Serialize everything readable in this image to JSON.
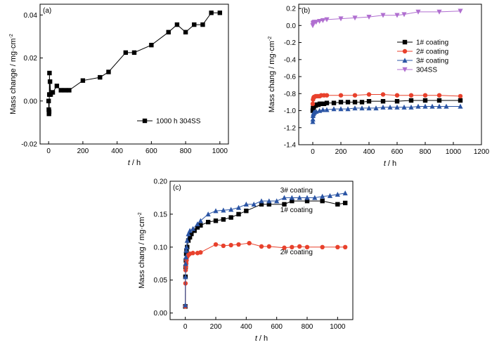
{
  "chart_data": [
    {
      "panel": "(a)",
      "type": "line",
      "xlabel_italic": "t",
      "xlabel_unit": " / h",
      "ylabel": "Mass change / mg·cm",
      "ylabel_sup": "-2",
      "xlim": [
        -50,
        1050
      ],
      "ylim": [
        -0.02,
        0.045
      ],
      "xticks": [
        0,
        200,
        400,
        600,
        800,
        1000
      ],
      "yticks": [
        -0.02,
        0.0,
        0.02,
        0.04
      ],
      "ytick_labels": [
        "-0.02",
        "0.00",
        "0.02",
        "0.04"
      ],
      "legend_position": "lower-right",
      "series": [
        {
          "name": "1000 h 304SS",
          "color": "#000000",
          "marker": "square",
          "x": [
            0,
            1,
            2,
            3,
            4,
            5,
            6,
            8,
            12,
            24,
            48,
            72,
            96,
            120,
            200,
            300,
            350,
            450,
            500,
            600,
            700,
            750,
            800,
            850,
            900,
            950,
            1000
          ],
          "y": [
            0.0,
            -0.004,
            -0.006,
            -0.005,
            0.003,
            0.013,
            0.003,
            0.009,
            0.003,
            0.004,
            0.007,
            0.005,
            0.005,
            0.005,
            0.0095,
            0.011,
            0.0135,
            0.0225,
            0.0225,
            0.026,
            0.032,
            0.0355,
            0.032,
            0.0355,
            0.0355,
            0.041,
            0.041
          ]
        }
      ]
    },
    {
      "panel": "(b)",
      "type": "line",
      "xlabel_italic": "t",
      "xlabel_unit": " / h",
      "ylabel": "Mass chang / mg·cm",
      "ylabel_sup": "-2",
      "xlim": [
        -100,
        1200
      ],
      "ylim": [
        -1.4,
        0.25
      ],
      "xticks": [
        0,
        200,
        400,
        600,
        800,
        1000,
        1200
      ],
      "yticks": [
        -1.4,
        -1.2,
        -1.0,
        -0.8,
        -0.6,
        -0.4,
        -0.2,
        0.0,
        0.2
      ],
      "ytick_labels": [
        "-1.4",
        "-1.2",
        "-1.0",
        "-0.8",
        "-0.6",
        "-0.4",
        "-0.2",
        "0.0",
        "0.2"
      ],
      "legend_position": "right",
      "series": [
        {
          "name": "1# coating",
          "color": "#000000",
          "marker": "square",
          "x": [
            0,
            2,
            5,
            8,
            12,
            20,
            30,
            40,
            50,
            60,
            80,
            100,
            150,
            200,
            250,
            300,
            350,
            400,
            500,
            600,
            700,
            800,
            900,
            1050
          ],
          "y": [
            -1.0,
            -0.97,
            -0.96,
            -0.95,
            -0.94,
            -0.94,
            -0.93,
            -0.93,
            -0.92,
            -0.92,
            -0.92,
            -0.91,
            -0.91,
            -0.9,
            -0.9,
            -0.9,
            -0.9,
            -0.89,
            -0.89,
            -0.89,
            -0.88,
            -0.88,
            -0.88,
            -0.88
          ]
        },
        {
          "name": "2# coating",
          "color": "#e8412c",
          "marker": "circle",
          "x": [
            0,
            2,
            5,
            8,
            12,
            20,
            30,
            40,
            50,
            60,
            80,
            100,
            200,
            300,
            400,
            500,
            600,
            700,
            800,
            900,
            1050
          ],
          "y": [
            -0.92,
            -0.87,
            -0.85,
            -0.84,
            -0.84,
            -0.83,
            -0.83,
            -0.83,
            -0.83,
            -0.82,
            -0.82,
            -0.82,
            -0.82,
            -0.82,
            -0.81,
            -0.81,
            -0.82,
            -0.82,
            -0.82,
            -0.82,
            -0.83
          ]
        },
        {
          "name": "3# coating",
          "color": "#2a54a4",
          "marker": "triangle",
          "x": [
            0,
            1,
            2,
            4,
            6,
            8,
            12,
            24,
            48,
            72,
            100,
            150,
            200,
            250,
            300,
            350,
            400,
            450,
            500,
            550,
            600,
            650,
            700,
            750,
            800,
            850,
            900,
            950,
            1050
          ],
          "y": [
            -1.13,
            -1.1,
            -1.06,
            -1.04,
            -1.03,
            -1.02,
            -1.02,
            -1.01,
            -1.0,
            -0.99,
            -0.99,
            -0.98,
            -0.98,
            -0.98,
            -0.97,
            -0.97,
            -0.97,
            -0.97,
            -0.96,
            -0.96,
            -0.96,
            -0.96,
            -0.96,
            -0.95,
            -0.95,
            -0.95,
            -0.95,
            -0.95,
            -0.95
          ]
        },
        {
          "name": "304SS",
          "color": "#b06fd0",
          "marker": "triangle-down",
          "x": [
            0,
            2,
            4,
            8,
            12,
            24,
            48,
            72,
            100,
            200,
            300,
            400,
            500,
            600,
            650,
            750,
            900,
            1050
          ],
          "y": [
            0.0,
            0.02,
            0.03,
            0.035,
            0.04,
            0.04,
            0.05,
            0.06,
            0.07,
            0.08,
            0.09,
            0.1,
            0.12,
            0.12,
            0.13,
            0.16,
            0.16,
            0.17
          ]
        }
      ]
    },
    {
      "panel": "(c)",
      "type": "line",
      "xlabel_italic": "t",
      "xlabel_unit": " / h",
      "ylabel": "Mass chang / mg·cm",
      "ylabel_sup": "-2",
      "xlim": [
        -100,
        1100
      ],
      "ylim": [
        -0.01,
        0.2
      ],
      "xticks": [
        0,
        200,
        400,
        600,
        800,
        1000
      ],
      "yticks": [
        0.0,
        0.05,
        0.1,
        0.15,
        0.2
      ],
      "ytick_labels": [
        "0.00",
        "0.05",
        "0.10",
        "0.15",
        "0.20"
      ],
      "annotations": [
        {
          "text": "3# coating",
          "x": 730,
          "y": 0.183
        },
        {
          "text": "1# coating",
          "x": 730,
          "y": 0.153
        },
        {
          "text": "2# coating",
          "x": 730,
          "y": 0.089
        }
      ],
      "series": [
        {
          "name": "1# coating",
          "color": "#000000",
          "marker": "square",
          "x": [
            0,
            1,
            2,
            4,
            6,
            8,
            12,
            20,
            30,
            40,
            60,
            80,
            100,
            150,
            200,
            250,
            300,
            350,
            400,
            500,
            550,
            650,
            700,
            800,
            900,
            1000,
            1050
          ],
          "y": [
            0.01,
            0.055,
            0.07,
            0.08,
            0.09,
            0.095,
            0.1,
            0.11,
            0.115,
            0.12,
            0.125,
            0.13,
            0.133,
            0.138,
            0.14,
            0.142,
            0.145,
            0.15,
            0.155,
            0.165,
            0.165,
            0.165,
            0.17,
            0.17,
            0.17,
            0.165,
            0.167
          ]
        },
        {
          "name": "2# coating",
          "color": "#e8412c",
          "marker": "circle",
          "x": [
            0,
            1,
            2,
            4,
            6,
            8,
            12,
            20,
            30,
            50,
            80,
            100,
            200,
            250,
            300,
            350,
            420,
            500,
            550,
            650,
            700,
            750,
            800,
            900,
            1000,
            1050
          ],
          "y": [
            0.01,
            0.045,
            0.065,
            0.07,
            0.075,
            0.08,
            0.085,
            0.088,
            0.09,
            0.091,
            0.091,
            0.092,
            0.104,
            0.102,
            0.103,
            0.104,
            0.106,
            0.101,
            0.101,
            0.099,
            0.1,
            0.101,
            0.1,
            0.1,
            0.1,
            0.1
          ]
        },
        {
          "name": "3# coating",
          "color": "#2a54a4",
          "marker": "triangle",
          "x": [
            0,
            1,
            2,
            4,
            6,
            8,
            12,
            20,
            30,
            50,
            80,
            100,
            150,
            200,
            250,
            300,
            350,
            400,
            450,
            500,
            550,
            600,
            650,
            700,
            750,
            800,
            850,
            900,
            950,
            1000,
            1050
          ],
          "y": [
            0.012,
            0.055,
            0.075,
            0.085,
            0.095,
            0.1,
            0.11,
            0.12,
            0.125,
            0.128,
            0.135,
            0.14,
            0.15,
            0.155,
            0.156,
            0.157,
            0.16,
            0.165,
            0.165,
            0.17,
            0.17,
            0.17,
            0.175,
            0.175,
            0.175,
            0.175,
            0.175,
            0.177,
            0.178,
            0.18,
            0.182
          ]
        }
      ]
    }
  ]
}
